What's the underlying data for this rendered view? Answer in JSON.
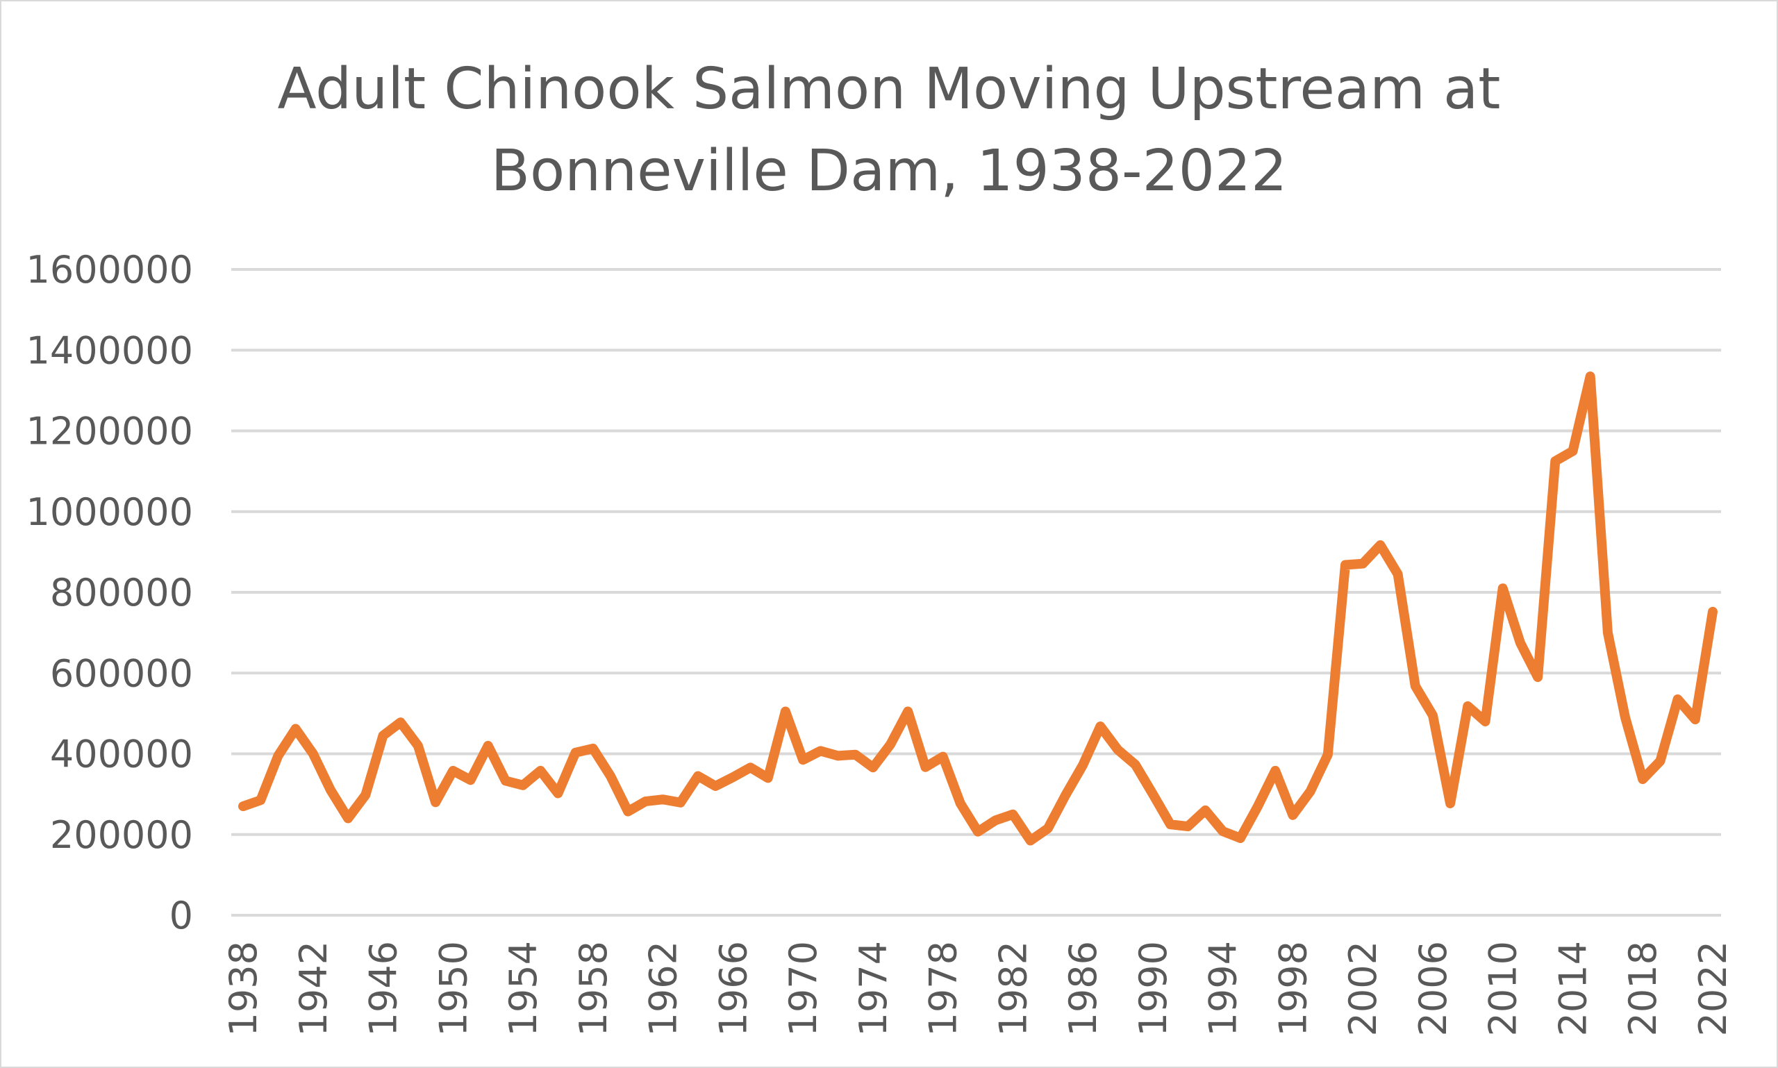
{
  "chart_data": {
    "type": "line",
    "title": "Adult Chinook Salmon Moving Upstream at Bonneville Dam, 1938-2022",
    "title_lines": [
      "Adult Chinook Salmon Moving Upstream at",
      "Bonneville Dam, 1938-2022"
    ],
    "xlabel": "",
    "ylabel": "",
    "ylim": [
      0,
      1600000
    ],
    "yticks": [
      "0",
      "200000",
      "400000",
      "600000",
      "800000",
      "1000000",
      "1200000",
      "1400000",
      "1600000"
    ],
    "xtick_labels": [
      "1938",
      "1942",
      "1946",
      "1950",
      "1954",
      "1958",
      "1962",
      "1966",
      "1970",
      "1974",
      "1978",
      "1982",
      "1986",
      "1990",
      "1994",
      "1998",
      "2002",
      "2006",
      "2010",
      "2014",
      "2018",
      "2022"
    ],
    "grid": true,
    "legend": "none",
    "line_color": "#ed7d31",
    "x": [
      1938,
      1939,
      1940,
      1941,
      1942,
      1943,
      1944,
      1945,
      1946,
      1947,
      1948,
      1949,
      1950,
      1951,
      1952,
      1953,
      1954,
      1955,
      1956,
      1957,
      1958,
      1959,
      1960,
      1961,
      1962,
      1963,
      1964,
      1965,
      1966,
      1967,
      1968,
      1969,
      1970,
      1971,
      1972,
      1973,
      1974,
      1975,
      1976,
      1977,
      1978,
      1979,
      1980,
      1981,
      1982,
      1983,
      1984,
      1985,
      1986,
      1987,
      1988,
      1989,
      1990,
      1991,
      1992,
      1993,
      1994,
      1995,
      1996,
      1997,
      1998,
      1999,
      2000,
      2001,
      2002,
      2003,
      2004,
      2005,
      2006,
      2007,
      2008,
      2009,
      2010,
      2011,
      2012,
      2013,
      2014,
      2015,
      2016,
      2017,
      2018,
      2019,
      2020,
      2021,
      2022
    ],
    "series": [
      {
        "values": [
          270000,
          285000,
          395000,
          462000,
          400000,
          310000,
          240000,
          298000,
          445000,
          478000,
          420000,
          280000,
          358000,
          335000,
          420000,
          333000,
          322000,
          358000,
          302000,
          403000,
          413000,
          345000,
          257000,
          282000,
          287000,
          279000,
          345000,
          320000,
          342000,
          366000,
          340000,
          505000,
          385000,
          407000,
          395000,
          398000,
          366000,
          423000,
          505000,
          367000,
          393000,
          277000,
          207000,
          235000,
          250000,
          185000,
          215000,
          297000,
          372000,
          468000,
          410000,
          373000,
          300000,
          225000,
          220000,
          260000,
          208000,
          191000,
          270000,
          358000,
          248000,
          307000,
          398000,
          868000,
          871000,
          917000,
          845000,
          568000,
          495000,
          277000,
          518000,
          480000,
          810000,
          675000,
          590000,
          1125000,
          1150000,
          1335000,
          700000,
          490000,
          337000,
          382000,
          535000,
          485000,
          752000
        ]
      }
    ]
  }
}
